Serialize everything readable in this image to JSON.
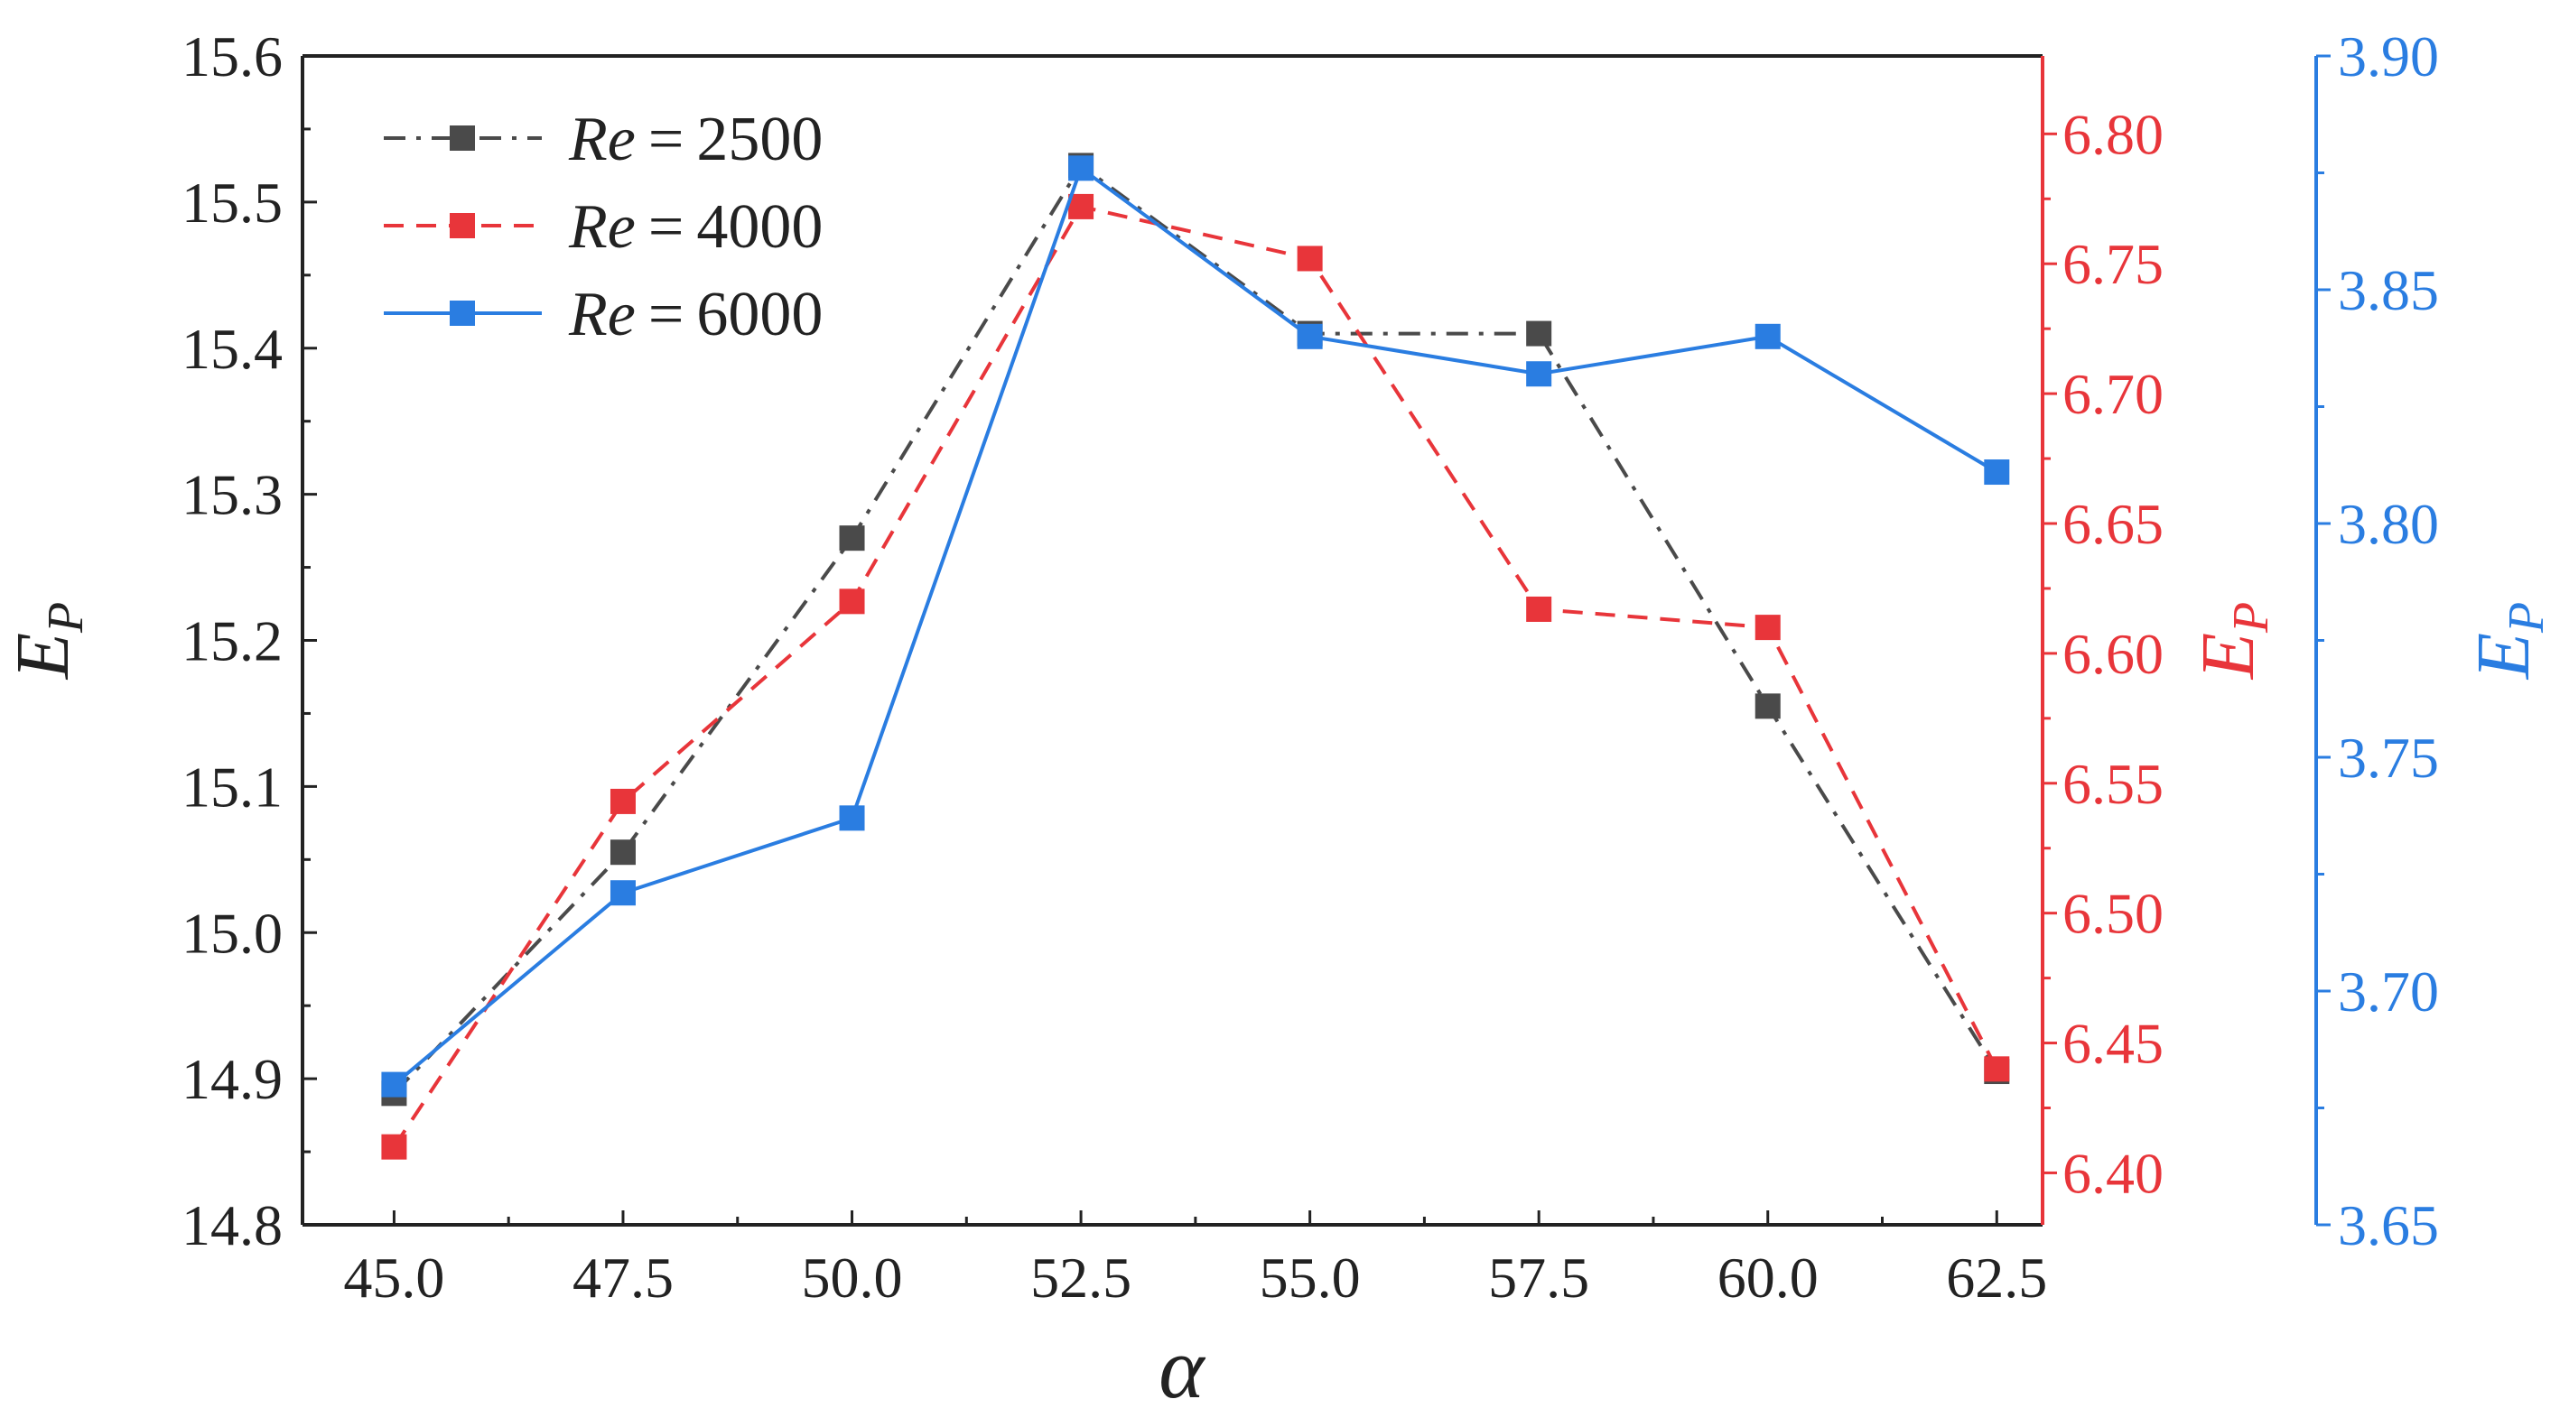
{
  "chart_data": {
    "type": "line",
    "title": "",
    "x": [
      45.0,
      47.5,
      50.0,
      52.5,
      55.0,
      57.5,
      60.0,
      62.5
    ],
    "x_tick_labels": [
      "45.0",
      "47.5",
      "50.0",
      "52.5",
      "55.0",
      "57.5",
      "60.0",
      "62.5"
    ],
    "xlabel": "α",
    "xlim": [
      44.0,
      63.0
    ],
    "axes": [
      {
        "id": "left",
        "label_main": "E",
        "label_sub": "P",
        "color": "#222222",
        "ylim": [
          14.8,
          15.6
        ],
        "ticks": [
          "14.8",
          "14.9",
          "15.0",
          "15.1",
          "15.2",
          "15.3",
          "15.4",
          "15.5",
          "15.6"
        ]
      },
      {
        "id": "right1",
        "label_main": "E",
        "label_sub": "P",
        "color": "#e8353a",
        "ylim": [
          6.38,
          6.83
        ],
        "ticks": [
          "6.40",
          "6.45",
          "6.50",
          "6.55",
          "6.60",
          "6.65",
          "6.70",
          "6.75",
          "6.80"
        ]
      },
      {
        "id": "right2",
        "label_main": "E",
        "label_sub": "P",
        "color": "#2a7de1",
        "ylim": [
          3.65,
          3.9
        ],
        "ticks": [
          "3.65",
          "3.70",
          "3.75",
          "3.80",
          "3.85",
          "3.90"
        ]
      }
    ],
    "series": [
      {
        "name": "Re = 2500",
        "legend_var": "Re",
        "legend_eq": "=",
        "legend_value": "2500",
        "axis": "left",
        "color": "#4a4a4a",
        "dash": "dashdot",
        "values": [
          14.89,
          15.055,
          15.27,
          15.525,
          15.41,
          15.41,
          15.155,
          14.905
        ]
      },
      {
        "name": "Re = 4000",
        "legend_var": "Re",
        "legend_eq": "=",
        "legend_value": "4000",
        "axis": "right1",
        "color": "#e8353a",
        "dash": "dash",
        "values": [
          6.41,
          6.543,
          6.62,
          6.772,
          6.752,
          6.617,
          6.61,
          6.44
        ]
      },
      {
        "name": "Re = 6000",
        "legend_var": "Re",
        "legend_eq": "=",
        "legend_value": "6000",
        "axis": "right2",
        "color": "#2a7de1",
        "dash": "solid",
        "values": [
          3.68,
          3.721,
          3.737,
          3.876,
          3.84,
          3.832,
          3.84,
          3.811
        ]
      }
    ],
    "legend_position": "top-left",
    "grid": false
  }
}
